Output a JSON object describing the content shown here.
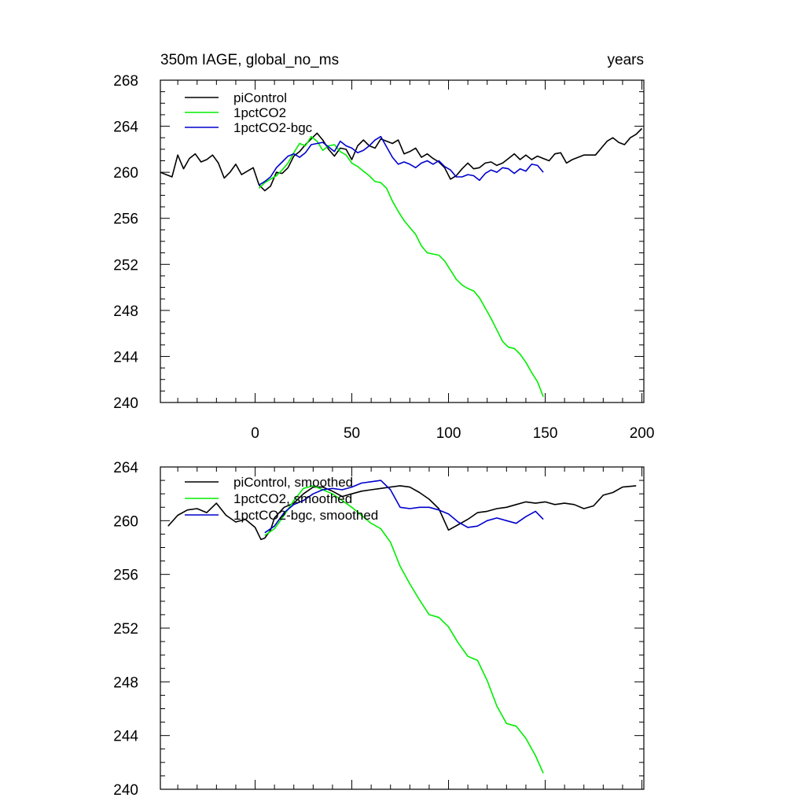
{
  "chart_data": [
    {
      "type": "line",
      "title_left": "350m IAGE, global_no_ms",
      "title_right": "years",
      "xlim": [
        -49,
        201
      ],
      "ylim": [
        240,
        268
      ],
      "yticks": [
        "240",
        "244",
        "248",
        "252",
        "256",
        "260",
        "264",
        "268"
      ],
      "xticks": [
        "0",
        "50",
        "100",
        "150",
        "200"
      ],
      "series": [
        {
          "name": "piControl",
          "color": "#000000",
          "x": [
            -49,
            -46,
            -43,
            -40,
            -37,
            -34,
            -31,
            -28,
            -25,
            -22,
            -19,
            -16,
            -13,
            -10,
            -7,
            -4,
            -1,
            2,
            5,
            8,
            11,
            14,
            17,
            20,
            23,
            26,
            29,
            32,
            35,
            38,
            41,
            44,
            47,
            50,
            53,
            56,
            59,
            62,
            65,
            68,
            71,
            74,
            77,
            80,
            83,
            86,
            89,
            92,
            95,
            98,
            101,
            104,
            107,
            110,
            113,
            116,
            119,
            122,
            125,
            128,
            131,
            134,
            137,
            140,
            143,
            146,
            149,
            152,
            155,
            158,
            161,
            164,
            167,
            170,
            173,
            176,
            179,
            182,
            185,
            188,
            191,
            194,
            197,
            200
          ],
          "values": [
            260.0,
            259.8,
            259.6,
            261.5,
            260.3,
            261.2,
            261.6,
            260.9,
            261.1,
            261.5,
            260.8,
            259.5,
            260.0,
            260.7,
            259.8,
            260.1,
            260.4,
            258.9,
            258.4,
            258.8,
            260.0,
            259.9,
            260.4,
            261.4,
            261.8,
            262.4,
            262.9,
            263.4,
            262.8,
            262.0,
            261.4,
            262.1,
            262.0,
            261.1,
            262.3,
            262.8,
            262.3,
            262.1,
            262.9,
            262.7,
            262.5,
            262.8,
            261.6,
            261.8,
            262.1,
            261.3,
            261.6,
            261.2,
            260.9,
            260.4,
            259.4,
            259.7,
            260.3,
            260.8,
            260.3,
            260.4,
            260.8,
            260.9,
            260.6,
            260.8,
            261.2,
            261.6,
            261.1,
            261.5,
            261.1,
            261.4,
            261.2,
            261.0,
            261.6,
            261.7,
            260.8,
            261.1,
            261.3,
            261.5,
            261.5,
            261.5,
            262.1,
            262.7,
            263.0,
            262.6,
            262.4,
            263.0,
            263.3,
            263.8
          ]
        },
        {
          "name": "1pctCO2",
          "color": "#00ee00",
          "x": [
            2,
            5,
            8,
            11,
            14,
            17,
            20,
            23,
            26,
            29,
            32,
            35,
            38,
            41,
            44,
            47,
            50,
            53,
            56,
            59,
            62,
            65,
            68,
            71,
            74,
            77,
            80,
            83,
            86,
            89,
            92,
            95,
            98,
            101,
            104,
            107,
            110,
            113,
            116,
            119,
            122,
            125,
            128,
            131,
            134,
            137,
            140,
            143,
            146,
            149
          ],
          "values": [
            258.6,
            259.1,
            259.4,
            259.7,
            260.2,
            260.8,
            261.7,
            262.5,
            262.3,
            263.1,
            262.7,
            261.9,
            262.3,
            262.4,
            261.8,
            261.5,
            260.8,
            260.5,
            260.1,
            259.7,
            259.2,
            259.1,
            258.6,
            257.5,
            256.6,
            255.8,
            255.2,
            254.6,
            253.6,
            253.0,
            252.9,
            252.8,
            252.3,
            251.5,
            250.7,
            250.2,
            249.9,
            249.7,
            249.1,
            248.2,
            247.3,
            246.3,
            245.3,
            244.8,
            244.7,
            244.2,
            243.5,
            242.6,
            241.8,
            240.5
          ]
        },
        {
          "name": "1pctCO2-bgc",
          "color": "#0000cc",
          "x": [
            2,
            5,
            8,
            11,
            14,
            17,
            20,
            23,
            26,
            29,
            32,
            35,
            38,
            41,
            44,
            47,
            50,
            53,
            56,
            59,
            62,
            65,
            68,
            71,
            74,
            77,
            80,
            83,
            86,
            89,
            92,
            95,
            98,
            101,
            104,
            107,
            110,
            113,
            116,
            119,
            122,
            125,
            128,
            131,
            134,
            137,
            140,
            143,
            146,
            149
          ],
          "values": [
            258.9,
            259.2,
            259.6,
            260.4,
            260.9,
            261.4,
            261.6,
            261.3,
            261.7,
            262.4,
            262.5,
            262.6,
            262.2,
            261.8,
            262.7,
            262.3,
            262.1,
            261.7,
            261.9,
            262.3,
            262.8,
            263.1,
            262.2,
            261.3,
            260.7,
            260.9,
            260.7,
            260.4,
            260.8,
            261.0,
            260.7,
            261.0,
            260.5,
            260.2,
            259.6,
            259.6,
            259.8,
            259.7,
            259.3,
            259.9,
            260.2,
            260.0,
            260.4,
            260.3,
            259.9,
            260.3,
            260.1,
            260.7,
            260.6,
            260.0
          ]
        }
      ]
    },
    {
      "type": "line",
      "xlim": [
        -49,
        201
      ],
      "ylim": [
        240,
        264
      ],
      "yticks": [
        "240",
        "244",
        "248",
        "252",
        "256",
        "260",
        "264"
      ],
      "series": [
        {
          "name": "piControl, smoothed",
          "color": "#000000",
          "x": [
            -45,
            -40,
            -35,
            -30,
            -25,
            -20,
            -15,
            -10,
            -5,
            0,
            3,
            5,
            8,
            10,
            15,
            20,
            25,
            30,
            35,
            40,
            45,
            50,
            55,
            60,
            65,
            70,
            75,
            80,
            85,
            90,
            95,
            100,
            105,
            110,
            115,
            120,
            125,
            130,
            135,
            140,
            145,
            150,
            155,
            160,
            165,
            170,
            175,
            180,
            185,
            190,
            197
          ],
          "values": [
            259.6,
            260.4,
            260.8,
            260.9,
            260.6,
            261.3,
            260.4,
            259.9,
            260.1,
            259.5,
            258.6,
            258.7,
            259.3,
            260.2,
            261.0,
            261.3,
            262.0,
            262.5,
            262.5,
            262.2,
            261.8,
            262.0,
            262.2,
            262.3,
            262.4,
            262.5,
            262.6,
            262.5,
            262.1,
            261.6,
            260.9,
            259.3,
            259.7,
            260.1,
            260.6,
            260.7,
            260.9,
            261.0,
            261.2,
            261.4,
            261.3,
            261.4,
            261.2,
            261.3,
            261.2,
            260.9,
            261.1,
            261.9,
            262.1,
            262.5,
            262.6
          ]
        },
        {
          "name": "1pctCO2, smoothed",
          "color": "#00ee00",
          "x": [
            5,
            10,
            15,
            20,
            25,
            30,
            35,
            40,
            45,
            50,
            55,
            60,
            65,
            70,
            75,
            80,
            85,
            90,
            95,
            100,
            105,
            110,
            115,
            120,
            125,
            130,
            135,
            140,
            145,
            149
          ],
          "values": [
            258.9,
            259.4,
            260.4,
            261.5,
            262.4,
            262.6,
            262.3,
            262.0,
            261.5,
            261.0,
            260.4,
            259.8,
            259.4,
            258.4,
            256.6,
            255.3,
            254.1,
            253.0,
            252.8,
            252.1,
            250.9,
            249.9,
            249.6,
            248.1,
            246.2,
            244.9,
            244.7,
            243.8,
            242.5,
            241.2
          ]
        },
        {
          "name": "1pctCO2-bgc, smoothed",
          "color": "#0000cc",
          "x": [
            5,
            10,
            15,
            20,
            25,
            30,
            35,
            40,
            45,
            50,
            55,
            60,
            65,
            70,
            75,
            80,
            85,
            90,
            95,
            100,
            105,
            110,
            115,
            120,
            125,
            130,
            135,
            140,
            145,
            149
          ],
          "values": [
            259.1,
            259.6,
            260.6,
            261.2,
            261.5,
            262.0,
            262.3,
            262.4,
            262.3,
            262.5,
            262.8,
            262.9,
            263.0,
            262.3,
            261.0,
            260.9,
            261.0,
            261.0,
            260.8,
            260.5,
            259.9,
            259.5,
            259.6,
            260.0,
            260.2,
            260.0,
            259.8,
            260.3,
            260.7,
            260.1
          ]
        }
      ]
    }
  ]
}
